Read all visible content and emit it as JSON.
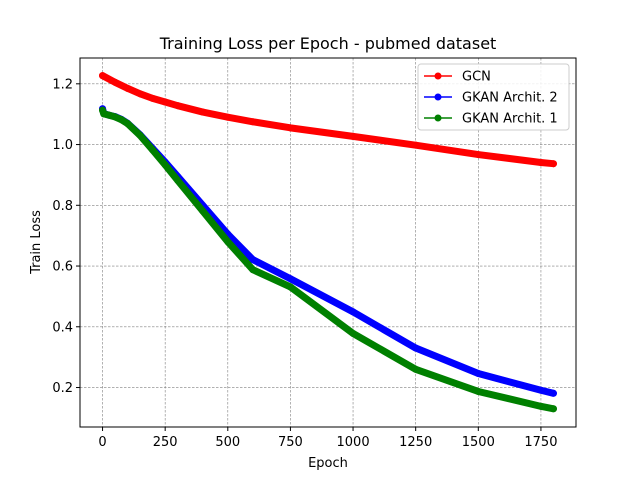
{
  "chart_data": {
    "type": "line",
    "title": "Training Loss per Epoch - pubmed dataset",
    "xlabel": "Epoch",
    "ylabel": "Train Loss",
    "xlim": [
      -90,
      1890
    ],
    "ylim": [
      0.07,
      1.285
    ],
    "xticks": [
      0,
      250,
      500,
      750,
      1000,
      1250,
      1500,
      1750
    ],
    "yticks": [
      0.2,
      0.4,
      0.6,
      0.8,
      1.0,
      1.2
    ],
    "grid": true,
    "legend_position": "top-right",
    "series": [
      {
        "name": "GCN",
        "color": "#ff0000",
        "x": [
          0,
          50,
          100,
          150,
          200,
          250,
          300,
          400,
          500,
          600,
          750,
          1000,
          1250,
          1500,
          1750,
          1800
        ],
        "y": [
          1.227,
          1.205,
          1.185,
          1.167,
          1.152,
          1.14,
          1.128,
          1.107,
          1.09,
          1.075,
          1.055,
          1.027,
          0.998,
          0.967,
          0.941,
          0.937
        ]
      },
      {
        "name": "GKAN Archit. 2",
        "color": "#0000ff",
        "x": [
          0,
          5,
          25,
          50,
          75,
          100,
          150,
          200,
          250,
          300,
          400,
          500,
          600,
          750,
          1000,
          1250,
          1500,
          1750,
          1800
        ],
        "y": [
          1.118,
          1.102,
          1.097,
          1.092,
          1.083,
          1.07,
          1.032,
          0.987,
          0.942,
          0.895,
          0.8,
          0.705,
          0.621,
          0.558,
          0.449,
          0.33,
          0.246,
          0.191,
          0.181
        ]
      },
      {
        "name": "GKAN Archit. 1",
        "color": "#008000",
        "x": [
          0,
          5,
          25,
          50,
          75,
          100,
          150,
          200,
          250,
          300,
          400,
          500,
          600,
          750,
          1000,
          1250,
          1500,
          1750,
          1800
        ],
        "y": [
          1.113,
          1.101,
          1.097,
          1.091,
          1.082,
          1.069,
          1.03,
          0.982,
          0.933,
          0.882,
          0.781,
          0.68,
          0.588,
          0.531,
          0.378,
          0.26,
          0.187,
          0.138,
          0.13
        ]
      }
    ]
  }
}
